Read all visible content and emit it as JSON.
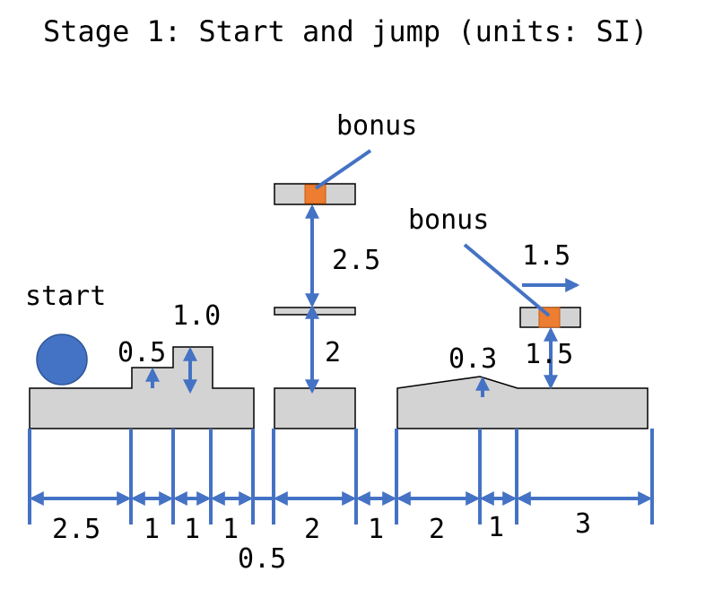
{
  "title": "Stage 1: Start and jump (units: SI)",
  "labels": {
    "start": "start",
    "bonus_top": "bonus",
    "bonus_right": "bonus"
  },
  "heights": {
    "step_low": "0.5",
    "step_high": "1.0",
    "platform_gap_upper": "2.5",
    "platform_gap_lower": "2",
    "ramp": "0.3",
    "right_platform": "1.5"
  },
  "widths": {
    "right_platform_width": "1.5",
    "w1": "2.5",
    "w2": "1",
    "w3": "1",
    "w4": "1",
    "w5": "0.5",
    "w6": "2",
    "w7": "1",
    "w8": "2",
    "w9": "1",
    "w10": "3"
  },
  "colors": {
    "dimension": "#4472c4",
    "ground": "#d3d3d3",
    "bonus": "#ed7d31",
    "ball": "#4472c4"
  }
}
